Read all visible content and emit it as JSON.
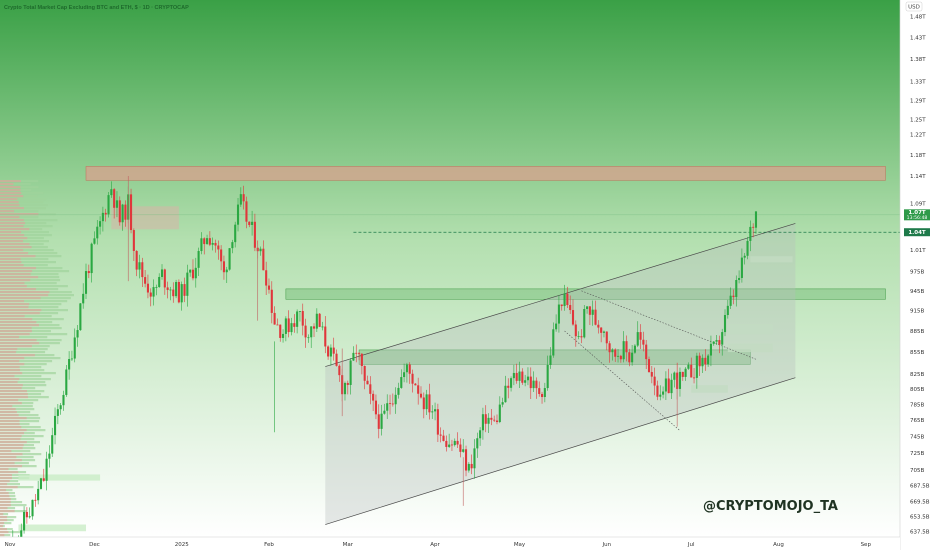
{
  "chart_data": {
    "type": "candlestick",
    "title": "Crypto Total Market Cap Excluding BTC and ETH, $ · 1D · CRYPTOCAP",
    "currency": "USD",
    "timeframe": "1D",
    "y_scale": "log",
    "ylim": [
      0.632,
      1.52
    ],
    "y_ticks": [
      {
        "value": 1.48,
        "label": "1.48T"
      },
      {
        "value": 1.43,
        "label": "1.43T"
      },
      {
        "value": 1.38,
        "label": "1.38T"
      },
      {
        "value": 1.33,
        "label": "1.33T"
      },
      {
        "value": 1.29,
        "label": "1.29T"
      },
      {
        "value": 1.25,
        "label": "1.25T"
      },
      {
        "value": 1.22,
        "label": "1.22T"
      },
      {
        "value": 1.18,
        "label": "1.18T"
      },
      {
        "value": 1.14,
        "label": "1.14T"
      },
      {
        "value": 1.09,
        "label": "1.09T"
      },
      {
        "value": 1.01,
        "label": "1.01T"
      },
      {
        "value": 0.975,
        "label": "975B"
      },
      {
        "value": 0.945,
        "label": "945B"
      },
      {
        "value": 0.915,
        "label": "915B"
      },
      {
        "value": 0.885,
        "label": "885B"
      },
      {
        "value": 0.855,
        "label": "855B"
      },
      {
        "value": 0.825,
        "label": "825B"
      },
      {
        "value": 0.805,
        "label": "805B"
      },
      {
        "value": 0.785,
        "label": "785B"
      },
      {
        "value": 0.765,
        "label": "765B"
      },
      {
        "value": 0.745,
        "label": "745B"
      },
      {
        "value": 0.725,
        "label": "725B"
      },
      {
        "value": 0.705,
        "label": "705B"
      },
      {
        "value": 0.6875,
        "label": "687.5B"
      },
      {
        "value": 0.6695,
        "label": "669.5B"
      },
      {
        "value": 0.6535,
        "label": "653.5B"
      },
      {
        "value": 0.6375,
        "label": "637.5B"
      }
    ],
    "x_ticks": [
      {
        "label": "Nov",
        "day": 0
      },
      {
        "label": "Dec",
        "day": 30
      },
      {
        "label": "2025",
        "day": 61
      },
      {
        "label": "Feb",
        "day": 92
      },
      {
        "label": "Mar",
        "day": 120
      },
      {
        "label": "Apr",
        "day": 151
      },
      {
        "label": "May",
        "day": 181
      },
      {
        "label": "Jun",
        "day": 212
      },
      {
        "label": "Jul",
        "day": 242
      },
      {
        "label": "Aug",
        "day": 273
      },
      {
        "label": "Sep",
        "day": 304
      }
    ],
    "last_price": {
      "value": 1.07,
      "label": "1.07T",
      "countdown": "13:56:48"
    },
    "dashed_level": {
      "value": 1.04,
      "label": "1.04T"
    },
    "price_path": [
      [
        0,
        0.62
      ],
      [
        8,
        0.665
      ],
      [
        12,
        0.695
      ],
      [
        16,
        0.76
      ],
      [
        20,
        0.82
      ],
      [
        24,
        0.9
      ],
      [
        27,
        0.97
      ],
      [
        30,
        1.02
      ],
      [
        33,
        1.07
      ],
      [
        36,
        1.12
      ],
      [
        39,
        1.06
      ],
      [
        42,
        1.09
      ],
      [
        45,
        0.99
      ],
      [
        48,
        0.96
      ],
      [
        51,
        0.94
      ],
      [
        54,
        0.97
      ],
      [
        57,
        0.95
      ],
      [
        61,
        0.94
      ],
      [
        64,
        0.97
      ],
      [
        67,
        1.0
      ],
      [
        70,
        1.04
      ],
      [
        73,
        1.02
      ],
      [
        76,
        0.97
      ],
      [
        79,
        1.04
      ],
      [
        82,
        1.09
      ],
      [
        85,
        1.05
      ],
      [
        88,
        1.02
      ],
      [
        91,
        0.97
      ],
      [
        94,
        0.9
      ],
      [
        97,
        0.885
      ],
      [
        100,
        0.9
      ],
      [
        103,
        0.91
      ],
      [
        106,
        0.88
      ],
      [
        109,
        0.9
      ],
      [
        112,
        0.87
      ],
      [
        115,
        0.84
      ],
      [
        118,
        0.81
      ],
      [
        120,
        0.815
      ],
      [
        123,
        0.86
      ],
      [
        126,
        0.81
      ],
      [
        129,
        0.78
      ],
      [
        132,
        0.76
      ],
      [
        135,
        0.79
      ],
      [
        138,
        0.815
      ],
      [
        141,
        0.83
      ],
      [
        144,
        0.815
      ],
      [
        147,
        0.79
      ],
      [
        150,
        0.78
      ],
      [
        153,
        0.75
      ],
      [
        156,
        0.74
      ],
      [
        159,
        0.735
      ],
      [
        161,
        0.72
      ],
      [
        163,
        0.705
      ],
      [
        166,
        0.74
      ],
      [
        169,
        0.77
      ],
      [
        172,
        0.76
      ],
      [
        175,
        0.79
      ],
      [
        178,
        0.815
      ],
      [
        181,
        0.825
      ],
      [
        184,
        0.82
      ],
      [
        187,
        0.8
      ],
      [
        190,
        0.81
      ],
      [
        193,
        0.88
      ],
      [
        196,
        0.935
      ],
      [
        199,
        0.91
      ],
      [
        202,
        0.87
      ],
      [
        205,
        0.92
      ],
      [
        208,
        0.9
      ],
      [
        211,
        0.89
      ],
      [
        214,
        0.85
      ],
      [
        217,
        0.86
      ],
      [
        220,
        0.85
      ],
      [
        223,
        0.88
      ],
      [
        226,
        0.845
      ],
      [
        229,
        0.82
      ],
      [
        231,
        0.785
      ],
      [
        233,
        0.805
      ],
      [
        236,
        0.82
      ],
      [
        239,
        0.815
      ],
      [
        242,
        0.83
      ],
      [
        245,
        0.84
      ],
      [
        248,
        0.85
      ],
      [
        251,
        0.86
      ],
      [
        254,
        0.9
      ],
      [
        257,
        0.94
      ],
      [
        259,
        0.965
      ],
      [
        261,
        1.0
      ],
      [
        263,
        1.04
      ],
      [
        265,
        1.075
      ]
    ],
    "zones": [
      {
        "kind": "supply",
        "day_from": 27,
        "day_to": 311,
        "price_from": 1.132,
        "price_to": 1.158,
        "color": "#d9a08e"
      },
      {
        "kind": "support",
        "day_from": 98,
        "day_to": 311,
        "price_from": 0.932,
        "price_to": 0.948,
        "color": "#7cc17e"
      },
      {
        "kind": "support",
        "day_from": 124,
        "day_to": 263,
        "price_from": 0.838,
        "price_to": 0.858,
        "color": "#7cc17e"
      }
    ],
    "channel": {
      "lower": [
        [
          112,
          0.645
        ],
        [
          279,
          0.82
        ]
      ],
      "upper": [
        [
          112,
          0.835
        ],
        [
          279,
          1.055
        ]
      ]
    },
    "wedge": {
      "upper": [
        [
          203,
          0.945
        ],
        [
          265,
          0.845
        ]
      ],
      "lower": [
        [
          197,
          0.885
        ],
        [
          238,
          0.752
        ]
      ]
    },
    "volume_profile": "visible at left edge",
    "grid": false,
    "watermark": "@CRYPTOMOJO_TA",
    "colors": {
      "up": "#2aa842",
      "down": "#e0363b",
      "background_top": "#2f9a38",
      "background_bottom": "#ffffff",
      "supply_zone": "#d9a08e",
      "support_zone": "#7cc17e",
      "channel_fill": "#b8bdbd",
      "price_label": "#2e9a49",
      "dashed_line": "#1e7a4a"
    }
  }
}
